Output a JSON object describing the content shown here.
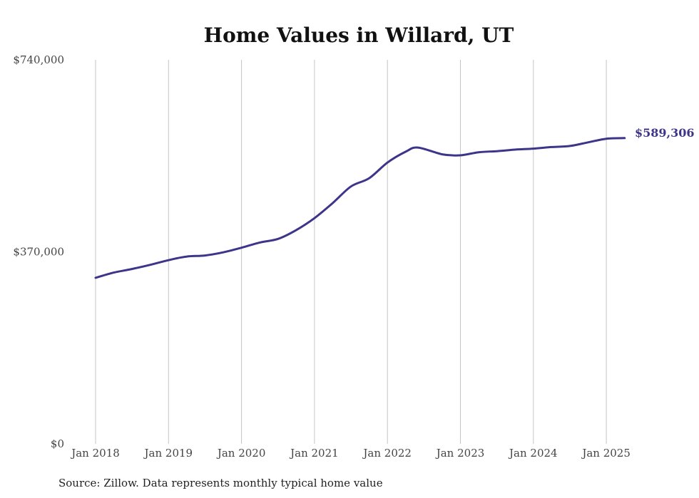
{
  "chart_data": {
    "type": "line",
    "title": "Home Values in Willard, UT",
    "xlabel": "",
    "ylabel": "",
    "ylim": [
      0,
      740000
    ],
    "y_ticks": [
      {
        "value": 0,
        "label": "$0"
      },
      {
        "value": 370000,
        "label": "$370,000"
      },
      {
        "value": 740000,
        "label": "$740,000"
      }
    ],
    "x_ticks": [
      {
        "value": 2018.0,
        "label": "Jan 2018"
      },
      {
        "value": 2019.0,
        "label": "Jan 2019"
      },
      {
        "value": 2020.0,
        "label": "Jan 2020"
      },
      {
        "value": 2021.0,
        "label": "Jan 2021"
      },
      {
        "value": 2022.0,
        "label": "Jan 2022"
      },
      {
        "value": 2023.0,
        "label": "Jan 2023"
      },
      {
        "value": 2024.0,
        "label": "Jan 2024"
      },
      {
        "value": 2025.0,
        "label": "Jan 2025"
      }
    ],
    "grid": "vertical",
    "line_color": "#3d3589",
    "series": [
      {
        "x": [
          "2018-01",
          "2018-04",
          "2018-07",
          "2018-10",
          "2019-01",
          "2019-04",
          "2019-07",
          "2019-10",
          "2020-01",
          "2020-04",
          "2020-07",
          "2020-10",
          "2021-01",
          "2021-04",
          "2021-07",
          "2021-10",
          "2022-01",
          "2022-04",
          "2022-06",
          "2022-10",
          "2023-01",
          "2023-04",
          "2023-07",
          "2023-10",
          "2024-01",
          "2024-04",
          "2024-07",
          "2024-10",
          "2025-01",
          "2025-04"
        ],
        "values": [
          320000,
          330000,
          337000,
          345000,
          354000,
          361000,
          363000,
          369000,
          378000,
          388000,
          395000,
          412000,
          435000,
          464000,
          496000,
          512000,
          542000,
          563000,
          571000,
          558000,
          556000,
          562000,
          564000,
          567000,
          569000,
          572000,
          574000,
          581000,
          588000,
          589306
        ]
      }
    ],
    "end_label": "$589,306",
    "source": "Source: Zillow. Data represents monthly typical home value"
  }
}
